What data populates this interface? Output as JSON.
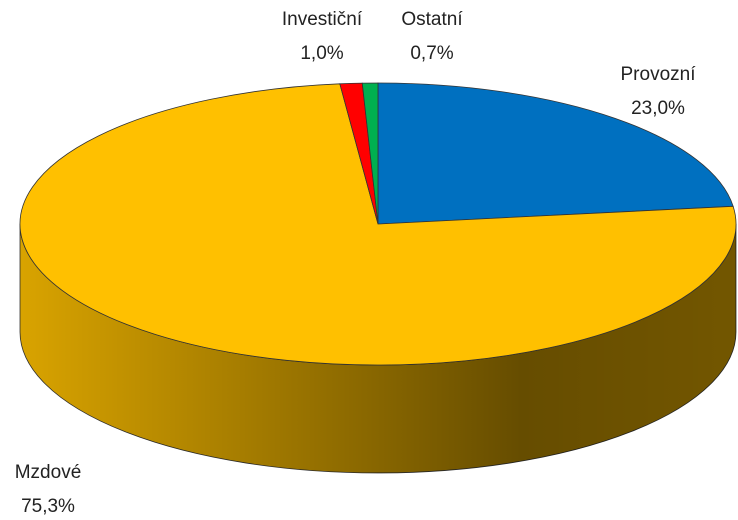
{
  "chart_data": {
    "type": "pie",
    "categories": [
      "Provozní",
      "Mzdové",
      "Investiční",
      "Ostatní"
    ],
    "values": [
      23.0,
      75.3,
      1.0,
      0.7
    ],
    "value_labels": [
      "23,0%",
      "75,3%",
      "1,0%",
      "0,7%"
    ],
    "colors": [
      "#0070c0",
      "#ffc000",
      "#ff0000",
      "#00b050"
    ]
  }
}
